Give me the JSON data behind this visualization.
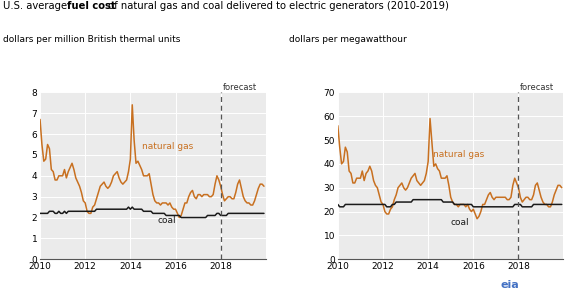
{
  "title_normal1": "U.S. average ",
  "title_bold": "fuel cost",
  "title_normal2": " of natural gas and coal delivered to electric generators (2010-2019)",
  "left_ylabel": "dollars per million British thermal units",
  "right_ylabel": "dollars per megawatthour",
  "left_ylim": [
    0,
    8
  ],
  "right_ylim": [
    0,
    70
  ],
  "left_yticks": [
    0,
    1,
    2,
    3,
    4,
    5,
    6,
    7,
    8
  ],
  "right_yticks": [
    0,
    10,
    20,
    30,
    40,
    50,
    60,
    70
  ],
  "xticks": [
    2010,
    2012,
    2014,
    2016,
    2018
  ],
  "xlim": [
    2010,
    2019.99
  ],
  "forecast_year": 2018,
  "ng_color": "#C87020",
  "coal_color": "#1a1a1a",
  "bg_color": "#ebebeb",
  "ng_label": "natural gas",
  "coal_label": "coal",
  "forecast_label": "forecast",
  "eia_color": "#4472c4",
  "left_ng_y": [
    6.7,
    5.5,
    4.7,
    4.8,
    5.5,
    5.3,
    4.3,
    4.2,
    3.8,
    3.8,
    4.0,
    4.0,
    4.0,
    4.3,
    3.9,
    4.2,
    4.4,
    4.6,
    4.3,
    3.9,
    3.7,
    3.5,
    3.2,
    2.8,
    2.7,
    2.3,
    2.2,
    2.2,
    2.5,
    2.6,
    2.9,
    3.2,
    3.5,
    3.6,
    3.7,
    3.5,
    3.4,
    3.5,
    3.7,
    4.0,
    4.1,
    4.2,
    3.9,
    3.7,
    3.6,
    3.7,
    3.8,
    4.2,
    4.8,
    7.4,
    5.7,
    4.6,
    4.7,
    4.5,
    4.3,
    4.0,
    4.0,
    4.0,
    4.1,
    3.6,
    3.1,
    2.8,
    2.7,
    2.7,
    2.6,
    2.7,
    2.7,
    2.7,
    2.6,
    2.7,
    2.5,
    2.4,
    2.4,
    2.2,
    2.0,
    2.1,
    2.4,
    2.7,
    2.7,
    3.0,
    3.2,
    3.3,
    3.0,
    2.9,
    3.1,
    3.1,
    3.0,
    3.1,
    3.1,
    3.1,
    3.0,
    3.0,
    3.1,
    3.6,
    4.0,
    3.8,
    3.5,
    3.1,
    2.8,
    2.9,
    3.0,
    3.0,
    2.9,
    2.9,
    3.2,
    3.6,
    3.8,
    3.4,
    3.0,
    2.8,
    2.7,
    2.7,
    2.6,
    2.6,
    2.8,
    3.1,
    3.4,
    3.6,
    3.6,
    3.5
  ],
  "left_coal_y": [
    2.2,
    2.2,
    2.2,
    2.2,
    2.2,
    2.3,
    2.3,
    2.3,
    2.2,
    2.2,
    2.3,
    2.2,
    2.2,
    2.3,
    2.2,
    2.3,
    2.3,
    2.3,
    2.3,
    2.3,
    2.3,
    2.3,
    2.3,
    2.3,
    2.3,
    2.3,
    2.3,
    2.3,
    2.3,
    2.3,
    2.4,
    2.4,
    2.4,
    2.4,
    2.4,
    2.4,
    2.4,
    2.4,
    2.4,
    2.4,
    2.4,
    2.4,
    2.4,
    2.4,
    2.4,
    2.4,
    2.4,
    2.5,
    2.4,
    2.5,
    2.4,
    2.4,
    2.4,
    2.4,
    2.4,
    2.3,
    2.3,
    2.3,
    2.3,
    2.3,
    2.2,
    2.2,
    2.2,
    2.2,
    2.2,
    2.2,
    2.2,
    2.1,
    2.1,
    2.1,
    2.1,
    2.1,
    2.1,
    2.1,
    2.1,
    2.0,
    2.0,
    2.0,
    2.0,
    2.0,
    2.0,
    2.0,
    2.0,
    2.0,
    2.0,
    2.0,
    2.0,
    2.0,
    2.0,
    2.1,
    2.1,
    2.1,
    2.1,
    2.1,
    2.2,
    2.2,
    2.1,
    2.1,
    2.1,
    2.1,
    2.2,
    2.2,
    2.2,
    2.2,
    2.2,
    2.2,
    2.2,
    2.2,
    2.2,
    2.2,
    2.2,
    2.2,
    2.2,
    2.2,
    2.2,
    2.2,
    2.2,
    2.2,
    2.2,
    2.2
  ],
  "right_ng_y": [
    56.0,
    47.0,
    40.0,
    41.0,
    47.0,
    45.0,
    37.0,
    36.0,
    32.0,
    32.0,
    34.0,
    34.0,
    34.0,
    37.0,
    33.0,
    36.0,
    37.0,
    39.0,
    37.0,
    33.0,
    31.0,
    30.0,
    27.0,
    24.0,
    23.0,
    20.0,
    19.0,
    19.0,
    21.0,
    22.0,
    25.0,
    27.0,
    30.0,
    31.0,
    32.0,
    30.0,
    29.0,
    30.0,
    32.0,
    34.0,
    35.0,
    36.0,
    33.0,
    32.0,
    31.0,
    32.0,
    33.0,
    36.0,
    41.0,
    59.0,
    49.0,
    39.0,
    40.0,
    38.0,
    37.0,
    34.0,
    34.0,
    34.0,
    35.0,
    31.0,
    26.0,
    24.0,
    23.0,
    23.0,
    22.0,
    23.0,
    23.0,
    23.0,
    22.0,
    23.0,
    21.0,
    20.0,
    21.0,
    19.0,
    17.0,
    18.0,
    20.0,
    23.0,
    23.0,
    25.0,
    27.0,
    28.0,
    26.0,
    25.0,
    26.0,
    26.0,
    26.0,
    26.0,
    26.0,
    26.0,
    25.0,
    25.0,
    26.0,
    31.0,
    34.0,
    32.0,
    30.0,
    26.0,
    24.0,
    25.0,
    26.0,
    26.0,
    25.0,
    25.0,
    27.0,
    31.0,
    32.0,
    29.0,
    26.0,
    24.0,
    23.0,
    23.0,
    22.0,
    22.0,
    24.0,
    27.0,
    29.0,
    31.0,
    31.0,
    30.0
  ],
  "right_coal_y": [
    23.0,
    22.0,
    22.0,
    22.0,
    23.0,
    23.0,
    23.0,
    23.0,
    23.0,
    23.0,
    23.0,
    23.0,
    23.0,
    23.0,
    23.0,
    23.0,
    23.0,
    23.0,
    23.0,
    23.0,
    23.0,
    23.0,
    23.0,
    23.0,
    23.0,
    23.0,
    22.0,
    22.0,
    22.0,
    23.0,
    23.0,
    24.0,
    24.0,
    24.0,
    24.0,
    24.0,
    24.0,
    24.0,
    24.0,
    24.0,
    25.0,
    25.0,
    25.0,
    25.0,
    25.0,
    25.0,
    25.0,
    25.0,
    25.0,
    25.0,
    25.0,
    25.0,
    25.0,
    25.0,
    25.0,
    25.0,
    24.0,
    24.0,
    24.0,
    24.0,
    24.0,
    24.0,
    23.0,
    23.0,
    23.0,
    23.0,
    23.0,
    23.0,
    23.0,
    23.0,
    23.0,
    23.0,
    22.0,
    22.0,
    22.0,
    22.0,
    22.0,
    22.0,
    22.0,
    22.0,
    22.0,
    22.0,
    22.0,
    22.0,
    22.0,
    22.0,
    22.0,
    22.0,
    22.0,
    22.0,
    22.0,
    22.0,
    22.0,
    22.0,
    23.0,
    23.0,
    23.0,
    23.0,
    22.0,
    22.0,
    22.0,
    22.0,
    22.0,
    22.0,
    23.0,
    23.0,
    23.0,
    23.0,
    23.0,
    23.0,
    23.0,
    23.0,
    23.0,
    23.0,
    23.0,
    23.0,
    23.0,
    23.0,
    23.0,
    23.0
  ]
}
